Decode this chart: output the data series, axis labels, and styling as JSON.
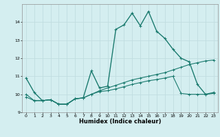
{
  "title": "",
  "xlabel": "Humidex (Indice chaleur)",
  "ylabel": "",
  "bg_color": "#d4eef0",
  "grid_color": "#c0dde0",
  "line_color": "#1a7a6e",
  "xlim": [
    -0.5,
    23.5
  ],
  "ylim": [
    9,
    15
  ],
  "yticks": [
    9,
    10,
    11,
    12,
    13,
    14
  ],
  "xticks": [
    0,
    1,
    2,
    3,
    4,
    5,
    6,
    7,
    8,
    9,
    10,
    11,
    12,
    13,
    14,
    15,
    16,
    17,
    18,
    19,
    20,
    21,
    22,
    23
  ],
  "series1_x": [
    0,
    1,
    2,
    3,
    4,
    5,
    6,
    7,
    8,
    9,
    10,
    11,
    12,
    13,
    14,
    15,
    16,
    17,
    18,
    19,
    20,
    21,
    22,
    23
  ],
  "series1_y": [
    10.9,
    10.1,
    9.65,
    9.7,
    9.45,
    9.45,
    9.75,
    9.8,
    11.3,
    10.35,
    10.45,
    13.6,
    13.85,
    14.5,
    13.8,
    14.6,
    13.5,
    13.1,
    12.5,
    12.0,
    11.8,
    10.55,
    10.0,
    10.1
  ],
  "series2_x": [
    0,
    1,
    2,
    3,
    4,
    5,
    6,
    7,
    8,
    9,
    10,
    11,
    12,
    13,
    14,
    15,
    16,
    17,
    18,
    19,
    20,
    21,
    22,
    23
  ],
  "series2_y": [
    10.0,
    9.65,
    9.65,
    9.7,
    9.45,
    9.45,
    9.75,
    9.8,
    10.0,
    10.2,
    10.35,
    10.5,
    10.65,
    10.8,
    10.9,
    11.0,
    11.1,
    11.2,
    11.35,
    11.5,
    11.65,
    11.75,
    11.85,
    11.9
  ],
  "series3_x": [
    0,
    1,
    2,
    3,
    4,
    5,
    6,
    7,
    8,
    9,
    10,
    11,
    12,
    13,
    14,
    15,
    16,
    17,
    18,
    19,
    20,
    21,
    22,
    23
  ],
  "series3_y": [
    9.85,
    9.65,
    9.65,
    9.7,
    9.45,
    9.45,
    9.75,
    9.8,
    10.0,
    10.15,
    10.2,
    10.3,
    10.42,
    10.55,
    10.65,
    10.75,
    10.82,
    10.9,
    11.0,
    10.05,
    10.0,
    10.0,
    10.0,
    10.05
  ],
  "xlabel_fontsize": 6.0,
  "tick_fontsize": 4.5,
  "linewidth1": 1.0,
  "linewidth2": 0.8,
  "markersize1": 3.0,
  "markersize2": 2.5
}
